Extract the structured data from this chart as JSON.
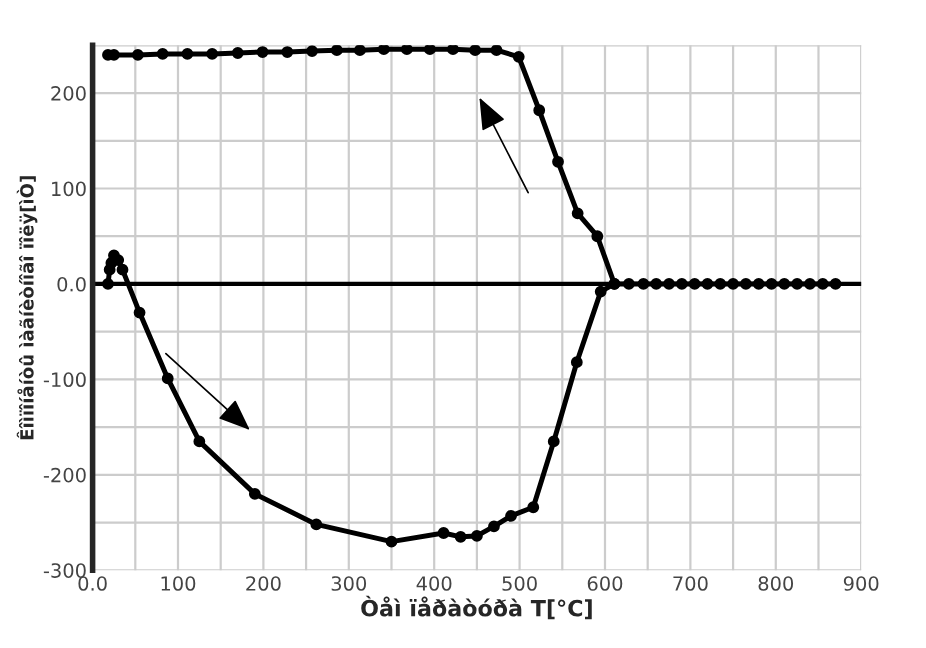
{
  "chart_data": {
    "type": "line",
    "xlabel": "Òåì ïåðàòóðà T[°C]",
    "ylabel": "Êîìïîíåíòû ìàãíèòíîãî ïîëÿ[ìÒ]",
    "series": [
      {
        "color": "#000000",
        "x": [
          18,
          25,
          53,
          82,
          111,
          140,
          170,
          199,
          228,
          257,
          286,
          313,
          341,
          368,
          395,
          422,
          448,
          473,
          499,
          523,
          545,
          568,
          591,
          611,
          628,
          645,
          660,
          675,
          690,
          705,
          720,
          735,
          750,
          765,
          780,
          795,
          810,
          825,
          840,
          855,
          870
        ],
        "values": [
          240,
          240,
          240,
          241,
          241,
          241,
          242,
          243,
          243,
          244,
          245,
          245,
          246,
          246,
          246,
          246,
          245,
          245,
          238,
          182,
          128,
          74,
          50,
          0,
          0,
          0,
          0,
          0,
          0,
          0,
          0,
          0,
          0,
          0,
          0,
          0,
          0,
          0,
          0,
          0,
          0
        ]
      },
      {
        "color": "#000000",
        "x": [
          18,
          20,
          22,
          25,
          30,
          35,
          55,
          88,
          125,
          190,
          262,
          350,
          411,
          431,
          450,
          470,
          490,
          516,
          540,
          567,
          595,
          611
        ],
        "values": [
          0,
          15,
          22,
          30,
          25,
          15,
          -30,
          -99,
          -165,
          -220,
          -252,
          -270,
          -261,
          -265,
          -264,
          -254,
          -243,
          -234,
          -165,
          -82,
          -8,
          0
        ]
      }
    ],
    "xlim": [
      0,
      900
    ],
    "xticks": [
      {
        "value": 0,
        "label": "0.0"
      },
      {
        "value": 50,
        "label": null
      },
      100,
      {
        "value": 150,
        "label": null
      },
      200,
      {
        "value": 250,
        "label": null
      },
      300,
      {
        "value": 350,
        "label": null
      },
      400,
      {
        "value": 450,
        "label": null
      },
      500,
      {
        "value": 550,
        "label": null
      },
      600,
      {
        "value": 650,
        "label": null
      },
      700,
      {
        "value": 750,
        "label": null
      },
      800,
      {
        "value": 850,
        "label": null
      },
      900
    ],
    "ylim": [
      -300,
      250
    ],
    "yticks": [
      -300,
      {
        "value": -250,
        "label": null
      },
      -200,
      {
        "value": -150,
        "label": null
      },
      -100,
      {
        "value": -50,
        "label": null
      },
      {
        "value": 0,
        "label": "0.0"
      },
      {
        "value": 50,
        "label": null
      },
      100,
      {
        "value": 150,
        "label": null
      },
      200,
      {
        "value": 250,
        "label": null
      }
    ],
    "ref_lines": [
      {
        "axis": "y",
        "value": 0,
        "color": "#000000"
      }
    ],
    "grid": true,
    "marker": "circle",
    "line_style": "solid"
  }
}
